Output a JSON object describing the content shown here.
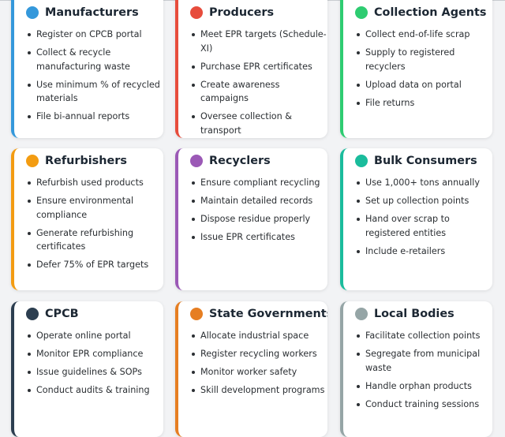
{
  "cards": [
    {
      "title": "Manufacturers",
      "color": "#3498db",
      "items": [
        "Register on CPCB portal",
        "Collect & recycle manufacturing waste",
        "Use minimum % of recycled materials",
        "File bi-annual reports"
      ]
    },
    {
      "title": "Producers",
      "color": "#e74c3c",
      "items": [
        "Meet EPR targets (Schedule-XI)",
        "Purchase EPR certificates",
        "Create awareness campaigns",
        "Oversee collection & transport"
      ]
    },
    {
      "title": "Collection Agents",
      "color": "#2ecc71",
      "items": [
        "Collect end-of-life scrap",
        "Supply to registered recyclers",
        "Upload data on portal",
        "File returns"
      ]
    },
    {
      "title": "Refurbishers",
      "color": "#f39c12",
      "items": [
        "Refurbish used products",
        "Ensure environmental compliance",
        "Generate refurbishing certificates",
        "Defer 75% of EPR targets"
      ]
    },
    {
      "title": "Recyclers",
      "color": "#9b59b6",
      "items": [
        "Ensure compliant recycling",
        "Maintain detailed records",
        "Dispose residue properly",
        "Issue EPR certificates"
      ]
    },
    {
      "title": "Bulk Consumers",
      "color": "#1abc9c",
      "items": [
        "Use 1,000+ tons annually",
        "Set up collection points",
        "Hand over scrap to registered entities",
        "Include e-retailers"
      ]
    },
    {
      "title": "CPCB",
      "color": "#2c3e50",
      "items": [
        "Operate online portal",
        "Monitor EPR compliance",
        "Issue guidelines & SOPs",
        "Conduct audits & training"
      ]
    },
    {
      "title": "State Governments",
      "color": "#e67e22",
      "items": [
        "Allocate industrial space",
        "Register recycling workers",
        "Monitor worker safety",
        "Skill development programs"
      ]
    },
    {
      "title": "Local Bodies",
      "color": "#95a5a6",
      "items": [
        "Facilitate collection points",
        "Segregate from municipal waste",
        "Handle orphan products",
        "Conduct training sessions"
      ]
    }
  ]
}
